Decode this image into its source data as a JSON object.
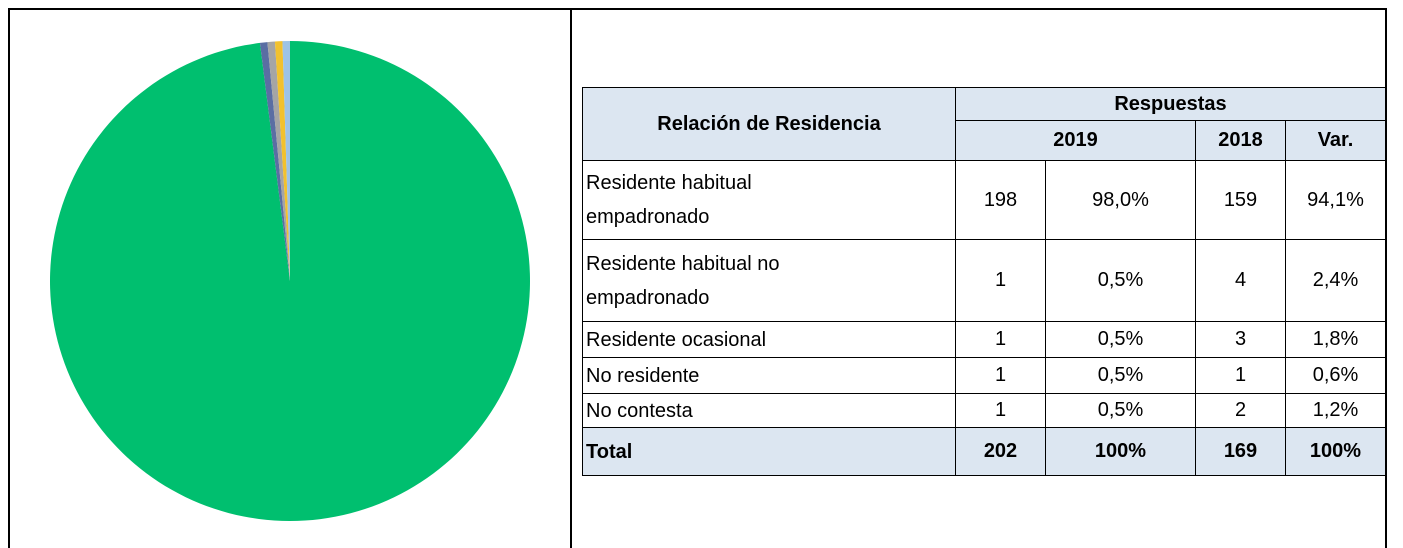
{
  "chart_data": {
    "type": "pie",
    "values": [
      98,
      0.5,
      0.5,
      0.5,
      0.5
    ],
    "colors": [
      "#00bf6f",
      "#5a6ea3",
      "#a5a5a5",
      "#f2c12e",
      "#9dc3e6"
    ]
  },
  "table": {
    "header": {
      "title": "Relación de Residencia",
      "group": "Respuestas",
      "years": [
        "2019",
        "2018"
      ],
      "var": "Var."
    },
    "rows": [
      [
        "Residente habitual empadronado",
        198,
        "98,0%",
        159,
        "94,1%"
      ],
      [
        "Residente habitual no empadronado",
        1,
        "0,5%",
        4,
        "2,4%"
      ],
      [
        "Residente ocasional",
        1,
        "0,5%",
        3,
        "1,8%"
      ],
      [
        "No residente",
        1,
        "0,5%",
        1,
        "0,6%"
      ],
      [
        "No contesta",
        1,
        "0,5%",
        2,
        "1,2%"
      ]
    ],
    "total": [
      "Total",
      202,
      "100%",
      169,
      "100%"
    ]
  }
}
